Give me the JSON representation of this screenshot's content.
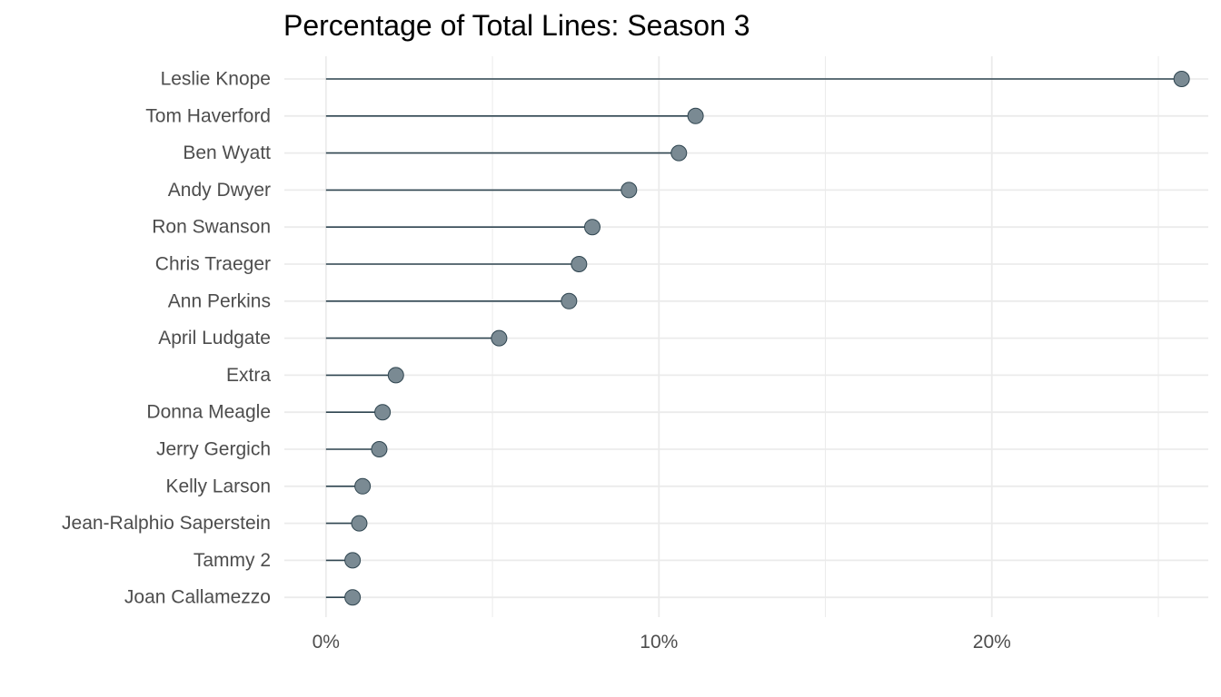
{
  "chart_data": {
    "type": "lollipop",
    "title": "Percentage of Total Lines: Season 3",
    "xlabel": "",
    "ylabel": "",
    "xlim": [
      -1.25,
      26.5
    ],
    "x_ticks": [
      0,
      10,
      20
    ],
    "x_tick_labels": [
      "0%",
      "10%",
      "20%"
    ],
    "x_minor_ticks": [
      5,
      15,
      25
    ],
    "grid": true,
    "legend": "none",
    "categories": [
      "Leslie Knope",
      "Tom Haverford",
      "Ben Wyatt",
      "Andy Dwyer",
      "Ron Swanson",
      "Chris Traeger",
      "Ann Perkins",
      "April Ludgate",
      "Extra",
      "Donna Meagle",
      "Jerry Gergich",
      "Kelly Larson",
      "Jean-Ralphio Saperstein",
      "Tammy 2",
      "Joan Callamezzo"
    ],
    "values": [
      25.7,
      11.1,
      10.6,
      9.1,
      8.0,
      7.6,
      7.3,
      5.2,
      2.1,
      1.7,
      1.6,
      1.1,
      1.0,
      0.8,
      0.8
    ],
    "colors": {
      "stem": "#2f4550",
      "point_fill": "#7a8a93",
      "point_stroke": "#2f4550",
      "grid": "#ebebeb",
      "label": "#4d4d4d"
    }
  }
}
